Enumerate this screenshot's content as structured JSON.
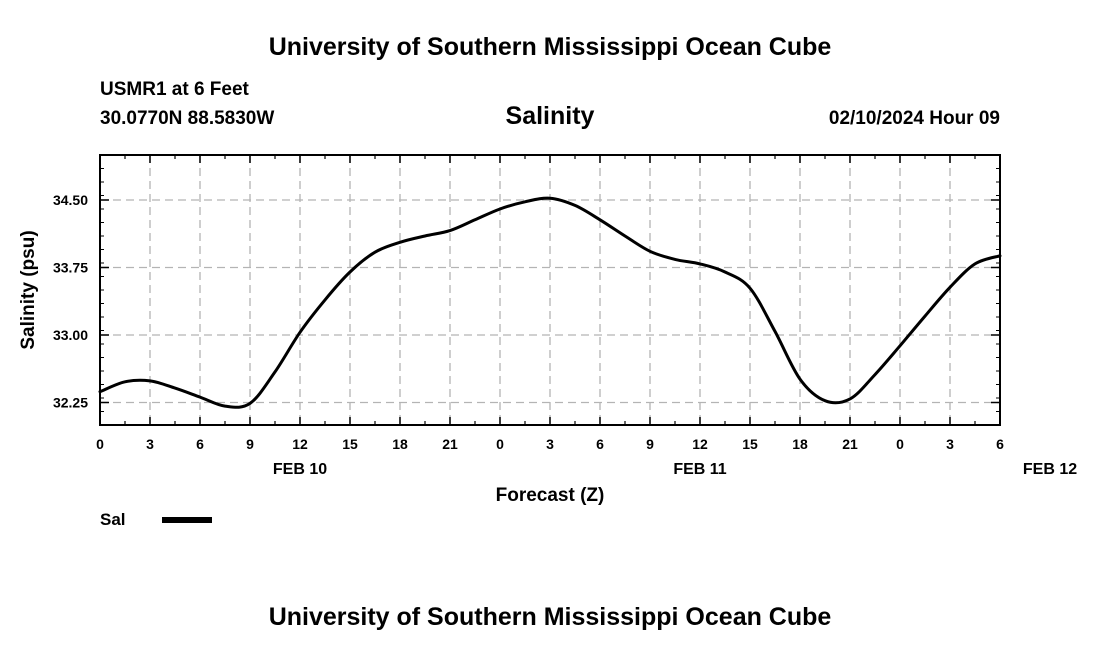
{
  "header": {
    "title": "University of Southern Mississippi Ocean Cube",
    "station": "USMR1 at 6 Feet",
    "coords": "30.0770N  88.5830W",
    "variable": "Salinity",
    "datetime": "02/10/2024 Hour 09",
    "footer_title": "University of Southern Mississippi Ocean Cube"
  },
  "chart_data": {
    "type": "line",
    "title": "Salinity",
    "xlabel": "Forecast (Z)",
    "ylabel": "Salinity (psu)",
    "x_start": "FEB 10 00Z",
    "x_step_hours": 1.5,
    "ylim": [
      32.0,
      35.0
    ],
    "yticks": [
      "32.25",
      "33.00",
      "33.75",
      "34.50"
    ],
    "xticks": [
      "0",
      "3",
      "6",
      "9",
      "12",
      "15",
      "18",
      "21",
      "0",
      "3",
      "6",
      "9",
      "12",
      "15",
      "18",
      "21",
      "0",
      "3",
      "6"
    ],
    "date_labels": [
      {
        "label": "FEB 10",
        "hour": 12
      },
      {
        "label": "FEB 11",
        "hour": 36
      },
      {
        "label": "FEB 12",
        "hour": 57
      }
    ],
    "grid": true,
    "legend": "bottom-left",
    "series": [
      {
        "name": "Sal",
        "color": "#000000",
        "hours": [
          0,
          1.5,
          3,
          4.5,
          6,
          7.5,
          9,
          10.5,
          12,
          13.5,
          15,
          16.5,
          18,
          19.5,
          21,
          22.5,
          24,
          25.5,
          27,
          28.5,
          30,
          31.5,
          33,
          34.5,
          36,
          37.5,
          39,
          40.5,
          42,
          43.5,
          45,
          46.5,
          48,
          49.5,
          51,
          52.5,
          54
        ],
        "values": [
          32.37,
          32.48,
          32.49,
          32.41,
          32.31,
          32.21,
          32.24,
          32.59,
          33.03,
          33.39,
          33.7,
          33.92,
          34.03,
          34.1,
          34.16,
          34.28,
          34.4,
          34.48,
          34.52,
          34.44,
          34.28,
          34.1,
          33.93,
          33.84,
          33.79,
          33.7,
          33.52,
          33.04,
          32.51,
          32.27,
          32.29,
          32.56,
          32.88,
          33.21,
          33.53,
          33.79,
          33.88
        ]
      }
    ]
  }
}
